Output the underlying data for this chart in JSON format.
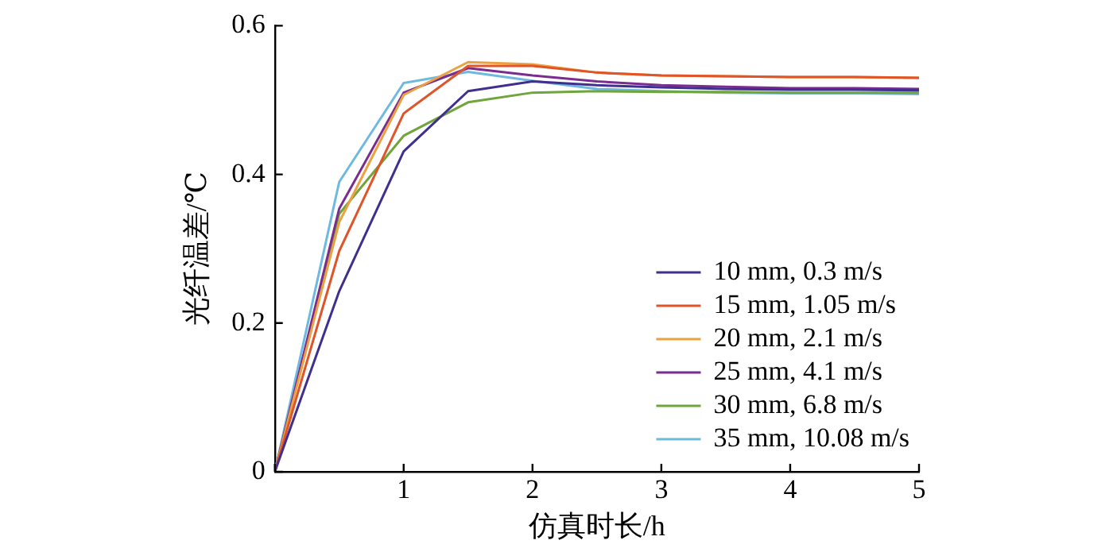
{
  "chart_data": {
    "type": "line",
    "xlabel": "仿真时长/h",
    "ylabel": "光纤温差/℃",
    "x": [
      0,
      0.5,
      1,
      1.5,
      2,
      2.5,
      3,
      3.5,
      4,
      4.5,
      5
    ],
    "xlim": [
      0,
      5
    ],
    "xticks": [
      {
        "value": 0,
        "label": null
      },
      1,
      2,
      3,
      4,
      5
    ],
    "ylim": [
      0,
      0.6
    ],
    "yticks": [
      0,
      0.2,
      0.4,
      0.6
    ],
    "grid": false,
    "legend": "bottom right",
    "marker": "none",
    "line_style": "solid",
    "series": [
      {
        "name": "10 mm, 0.3 m/s",
        "color": "#3f2f8f",
        "values": [
          0,
          0.243,
          0.431,
          0.512,
          0.525,
          0.52,
          0.517,
          0.515,
          0.514,
          0.514,
          0.513
        ]
      },
      {
        "name": "15 mm, 1.05 m/s",
        "color": "#e0542a",
        "values": [
          0,
          0.297,
          0.482,
          0.546,
          0.546,
          0.537,
          0.533,
          0.532,
          0.531,
          0.531,
          0.53
        ]
      },
      {
        "name": "20 mm, 2.1 m/s",
        "color": "#eba13f",
        "values": [
          0,
          0.336,
          0.507,
          0.551,
          0.548,
          0.537,
          0.533,
          0.532,
          0.531,
          0.531,
          0.53
        ]
      },
      {
        "name": "25 mm, 4.1 m/s",
        "color": "#7a2c8f",
        "values": [
          0,
          0.354,
          0.51,
          0.543,
          0.533,
          0.525,
          0.52,
          0.518,
          0.516,
          0.516,
          0.515
        ]
      },
      {
        "name": "30 mm, 6.8 m/s",
        "color": "#6fa53a",
        "values": [
          0,
          0.347,
          0.452,
          0.497,
          0.51,
          0.512,
          0.511,
          0.511,
          0.51,
          0.51,
          0.51
        ]
      },
      {
        "name": "35 mm, 10.08 m/s",
        "color": "#6fb9e0",
        "values": [
          0,
          0.39,
          0.523,
          0.538,
          0.526,
          0.515,
          0.512,
          0.51,
          0.509,
          0.509,
          0.508
        ]
      }
    ]
  }
}
